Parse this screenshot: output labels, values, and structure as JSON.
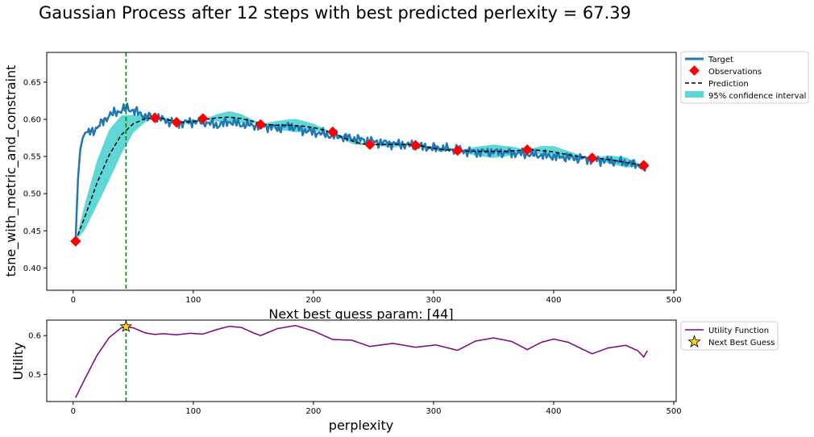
{
  "chart_data": [
    {
      "type": "line",
      "title": "Gaussian Process after 12 steps with best predicted perlexity = 67.39",
      "xlabel": "Next best guess param: [44]",
      "ylabel": "tsne_with_metric_and_constraint",
      "xlim": [
        -22,
        502
      ],
      "ylim": [
        0.37,
        0.69
      ],
      "xticks": [
        0,
        100,
        200,
        300,
        400,
        500
      ],
      "yticks": [
        0.4,
        0.45,
        0.5,
        0.55,
        0.6,
        0.65
      ],
      "ytick_labels": [
        "0.40",
        "0.45",
        "0.50",
        "0.55",
        "0.60",
        "0.65"
      ],
      "grid": false,
      "legend": {
        "placement": "outside upper-right",
        "entries": [
          "Target",
          "Observations",
          "Prediction",
          "95% confidence interval"
        ]
      },
      "series": [
        {
          "name": "Target",
          "x": [
            2,
            3,
            4,
            6,
            8,
            10,
            15,
            20,
            25,
            30,
            35,
            40,
            45,
            50,
            60,
            70,
            80,
            90,
            100,
            110,
            120,
            130,
            140,
            150,
            160,
            170,
            180,
            190,
            200,
            215,
            230,
            245,
            260,
            275,
            290,
            305,
            320,
            335,
            350,
            365,
            380,
            395,
            410,
            425,
            440,
            455,
            470,
            478
          ],
          "values": [
            0.436,
            0.48,
            0.52,
            0.56,
            0.575,
            0.582,
            0.584,
            0.588,
            0.598,
            0.605,
            0.609,
            0.612,
            0.615,
            0.612,
            0.604,
            0.602,
            0.597,
            0.595,
            0.597,
            0.596,
            0.592,
            0.597,
            0.593,
            0.592,
            0.591,
            0.588,
            0.591,
            0.586,
            0.583,
            0.578,
            0.575,
            0.571,
            0.568,
            0.566,
            0.563,
            0.561,
            0.559,
            0.556,
            0.556,
            0.555,
            0.553,
            0.551,
            0.549,
            0.547,
            0.545,
            0.543,
            0.539,
            0.533
          ],
          "noise_amplitude": 0.006,
          "color": "#1f77b4"
        },
        {
          "name": "Observations",
          "x": [
            2,
            68,
            86,
            108,
            156,
            216,
            247,
            285,
            320,
            378,
            432,
            475
          ],
          "values": [
            0.436,
            0.602,
            0.596,
            0.601,
            0.593,
            0.583,
            0.566,
            0.565,
            0.558,
            0.559,
            0.548,
            0.538
          ],
          "color": "#ff0000"
        },
        {
          "name": "Prediction",
          "x": [
            2,
            10,
            20,
            30,
            40,
            50,
            60,
            70,
            80,
            90,
            100,
            110,
            120,
            130,
            140,
            150,
            160,
            170,
            180,
            190,
            200,
            210,
            220,
            230,
            240,
            250,
            260,
            270,
            280,
            290,
            300,
            310,
            320,
            330,
            340,
            350,
            360,
            370,
            380,
            390,
            400,
            410,
            420,
            430,
            440,
            450,
            460,
            470,
            478
          ],
          "values": [
            0.436,
            0.47,
            0.515,
            0.552,
            0.579,
            0.594,
            0.601,
            0.602,
            0.599,
            0.596,
            0.597,
            0.6,
            0.602,
            0.603,
            0.601,
            0.597,
            0.593,
            0.592,
            0.592,
            0.591,
            0.589,
            0.585,
            0.579,
            0.572,
            0.567,
            0.566,
            0.566,
            0.566,
            0.566,
            0.564,
            0.561,
            0.559,
            0.558,
            0.557,
            0.557,
            0.557,
            0.557,
            0.558,
            0.559,
            0.558,
            0.556,
            0.553,
            0.55,
            0.548,
            0.547,
            0.545,
            0.542,
            0.539,
            0.537
          ],
          "color": "#000000"
        },
        {
          "name": "95% confidence interval",
          "x": [
            2,
            10,
            20,
            30,
            40,
            50,
            60,
            68,
            78,
            86,
            97,
            108,
            120,
            130,
            140,
            150,
            156,
            170,
            185,
            200,
            216,
            232,
            247,
            266,
            285,
            302,
            320,
            335,
            350,
            365,
            378,
            390,
            400,
            412,
            432,
            445,
            460,
            475,
            478
          ],
          "half_width": [
            0.0,
            0.018,
            0.03,
            0.034,
            0.026,
            0.012,
            0.005,
            0.0,
            0.002,
            0.0,
            0.003,
            0.0,
            0.005,
            0.008,
            0.006,
            0.002,
            0.0,
            0.006,
            0.009,
            0.005,
            0.0,
            0.004,
            0.0,
            0.004,
            0.0,
            0.003,
            0.0,
            0.006,
            0.009,
            0.006,
            0.0,
            0.006,
            0.008,
            0.005,
            0.0,
            0.005,
            0.007,
            0.0,
            0.003
          ],
          "color": "#5fd7d7"
        },
        {
          "name": "Next best guess marker",
          "x": 44,
          "style": "vertical dashed line",
          "color": "#008000"
        }
      ]
    },
    {
      "type": "line",
      "xlabel": "perplexity",
      "ylabel": "Utility",
      "xlim": [
        -22,
        502
      ],
      "ylim": [
        0.43,
        0.64
      ],
      "xticks": [
        0,
        100,
        200,
        300,
        400,
        500
      ],
      "yticks": [
        0.5,
        0.6
      ],
      "ytick_labels": [
        "0.5",
        "0.6"
      ],
      "grid": false,
      "legend": {
        "placement": "outside upper-right",
        "entries": [
          "Utility Function",
          "Next Best Guess"
        ]
      },
      "series": [
        {
          "name": "Utility Function",
          "x": [
            2,
            10,
            20,
            30,
            40,
            44,
            50,
            60,
            68,
            75,
            86,
            97,
            108,
            120,
            130,
            140,
            150,
            156,
            170,
            185,
            200,
            216,
            232,
            247,
            266,
            285,
            302,
            320,
            335,
            350,
            365,
            378,
            390,
            400,
            412,
            432,
            445,
            460,
            470,
            475,
            478
          ],
          "values": [
            0.44,
            0.49,
            0.55,
            0.595,
            0.62,
            0.623,
            0.62,
            0.607,
            0.603,
            0.605,
            0.602,
            0.606,
            0.604,
            0.616,
            0.624,
            0.621,
            0.607,
            0.6,
            0.618,
            0.626,
            0.612,
            0.59,
            0.588,
            0.572,
            0.58,
            0.57,
            0.576,
            0.562,
            0.586,
            0.594,
            0.585,
            0.564,
            0.583,
            0.591,
            0.583,
            0.553,
            0.568,
            0.575,
            0.561,
            0.545,
            0.561
          ],
          "color": "#800080"
        },
        {
          "name": "Next Best Guess",
          "x": [
            44
          ],
          "values": [
            0.623
          ],
          "marker": "star",
          "color": "#ffd700"
        },
        {
          "name": "Next best guess marker",
          "x": 44,
          "style": "vertical dashed line",
          "color": "#008000"
        }
      ]
    }
  ]
}
